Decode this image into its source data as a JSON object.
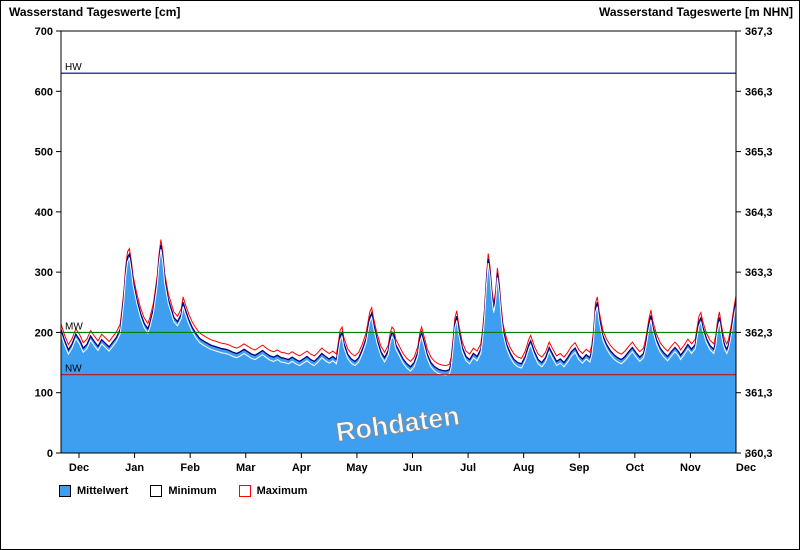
{
  "header": {
    "left_title": "Wasserstand Tageswerte [cm]",
    "right_title": "Wasserstand Tageswerte [m NHN]"
  },
  "watermark": "Rohdaten",
  "legend": [
    {
      "label": "Mittelwert",
      "fill": "#3E9EEF",
      "border": "#000000"
    },
    {
      "label": "Minimum",
      "fill": "#FFFFFF",
      "border": "#000000"
    },
    {
      "label": "Maximum",
      "fill": "#FFFFFF",
      "border": "#FF0000"
    }
  ],
  "chart_data": {
    "type": "area",
    "title": "Wasserstand Tageswerte",
    "x_unit": "days from Dec 1, one year",
    "x_max_day": 365,
    "x_tick_labels": [
      "Dec",
      "Jan",
      "Feb",
      "Mar",
      "Apr",
      "May",
      "Jun",
      "Jul",
      "Aug",
      "Sep",
      "Oct",
      "Nov",
      "Dec"
    ],
    "y_left": {
      "label": "Wasserstand Tageswerte [cm]",
      "min": 0,
      "max": 700,
      "ticks": [
        0,
        100,
        200,
        300,
        400,
        500,
        600,
        700
      ]
    },
    "y_right": {
      "label": "Wasserstand Tageswerte [m NHN]",
      "min": 360.3,
      "max": 367.3,
      "ticks": [
        "360,3",
        "361,3",
        "362,3",
        "363,3",
        "364,3",
        "365,3",
        "366,3",
        "367,3"
      ]
    },
    "reference_lines": [
      {
        "name": "HW",
        "value": 630,
        "color": "#000080"
      },
      {
        "name": "MW",
        "value": 200,
        "color": "#008000"
      },
      {
        "name": "NW",
        "value": 130,
        "color": "#B22222"
      }
    ],
    "colors": {
      "area_fill": "#3E9EEF",
      "mean_line": "#000080",
      "min_line": "#FFFFFF",
      "max_line": "#FF0000"
    },
    "series_days": [
      0,
      2,
      4,
      6,
      8,
      10,
      12,
      14,
      16,
      18,
      20,
      22,
      24,
      26,
      28,
      30,
      32,
      33,
      34,
      35,
      36,
      37,
      38,
      39,
      41,
      43,
      45,
      47,
      48,
      50,
      52,
      53,
      54,
      55,
      56,
      58,
      60,
      61,
      63,
      65,
      66,
      67,
      69,
      71,
      73,
      75,
      78,
      81,
      84,
      87,
      89,
      91,
      93,
      95,
      97,
      99,
      101,
      103,
      105,
      107,
      109,
      111,
      113,
      115,
      117,
      119,
      121,
      123,
      125,
      127,
      129,
      131,
      133,
      135,
      137,
      139,
      141,
      143,
      145,
      147,
      149,
      150,
      151,
      152,
      153,
      155,
      157,
      159,
      161,
      163,
      165,
      167,
      168,
      169,
      171,
      173,
      175,
      177,
      178,
      179,
      180,
      181,
      183,
      185,
      187,
      189,
      191,
      193,
      194,
      195,
      196,
      198,
      200,
      202,
      204,
      206,
      208,
      210,
      211,
      212,
      213,
      214,
      215,
      217,
      219,
      221,
      223,
      225,
      227,
      228,
      229,
      230,
      231,
      232,
      233,
      234,
      235,
      236,
      237,
      238,
      239,
      241,
      243,
      245,
      247,
      249,
      251,
      253,
      254,
      256,
      258,
      260,
      262,
      264,
      266,
      268,
      270,
      272,
      274,
      276,
      278,
      280,
      282,
      284,
      286,
      287,
      288,
      289,
      290,
      291,
      293,
      295,
      297,
      299,
      301,
      303,
      305,
      307,
      309,
      311,
      313,
      315,
      316,
      317,
      318,
      319,
      320,
      322,
      324,
      326,
      328,
      330,
      332,
      334,
      335,
      337,
      339,
      341,
      343,
      344,
      345,
      346,
      347,
      349,
      351,
      353,
      354,
      355,
      356,
      357,
      358,
      359,
      360,
      361,
      362,
      363,
      364,
      365
    ],
    "series": [
      {
        "name": "Mittelwert",
        "values": [
          205,
          186,
          171,
          181,
          197,
          188,
          174,
          180,
          194,
          185,
          177,
          188,
          182,
          176,
          184,
          192,
          205,
          230,
          260,
          300,
          325,
          330,
          310,
          285,
          255,
          232,
          215,
          206,
          215,
          240,
          285,
          320,
          345,
          325,
          290,
          255,
          235,
          225,
          218,
          230,
          250,
          240,
          222,
          208,
          198,
          190,
          184,
          179,
          176,
          173,
          172,
          170,
          167,
          165,
          168,
          172,
          168,
          164,
          162,
          166,
          170,
          165,
          161,
          159,
          162,
          158,
          157,
          155,
          159,
          155,
          152,
          156,
          160,
          155,
          152,
          158,
          165,
          160,
          156,
          160,
          155,
          175,
          195,
          200,
          182,
          164,
          156,
          152,
          158,
          172,
          190,
          225,
          232,
          215,
          188,
          168,
          158,
          170,
          190,
          200,
          196,
          180,
          168,
          156,
          148,
          143,
          150,
          168,
          190,
          200,
          188,
          164,
          150,
          143,
          139,
          137,
          136,
          138,
          150,
          180,
          215,
          227,
          205,
          175,
          160,
          155,
          165,
          160,
          172,
          195,
          230,
          280,
          322,
          300,
          262,
          240,
          258,
          298,
          272,
          235,
          205,
          180,
          165,
          155,
          150,
          148,
          160,
          180,
          186,
          168,
          155,
          150,
          158,
          175,
          163,
          152,
          156,
          150,
          158,
          168,
          174,
          162,
          156,
          163,
          158,
          170,
          195,
          240,
          250,
          225,
          195,
          180,
          170,
          163,
          158,
          155,
          160,
          168,
          175,
          166,
          159,
          165,
          178,
          195,
          215,
          228,
          210,
          188,
          174,
          166,
          160,
          168,
          175,
          168,
          162,
          170,
          180,
          172,
          180,
          200,
          218,
          224,
          210,
          190,
          178,
          172,
          185,
          210,
          225,
          205,
          188,
          178,
          172,
          180,
          196,
          214,
          235,
          252
        ]
      },
      {
        "name": "Minimum",
        "offset_from_mean": -7
      },
      {
        "name": "Maximum",
        "offset_from_mean": 9
      }
    ],
    "legend_entries": [
      "Mittelwert",
      "Minimum",
      "Maximum"
    ],
    "grid": false,
    "annotations": [
      "HW",
      "MW",
      "NW",
      "Rohdaten"
    ]
  }
}
